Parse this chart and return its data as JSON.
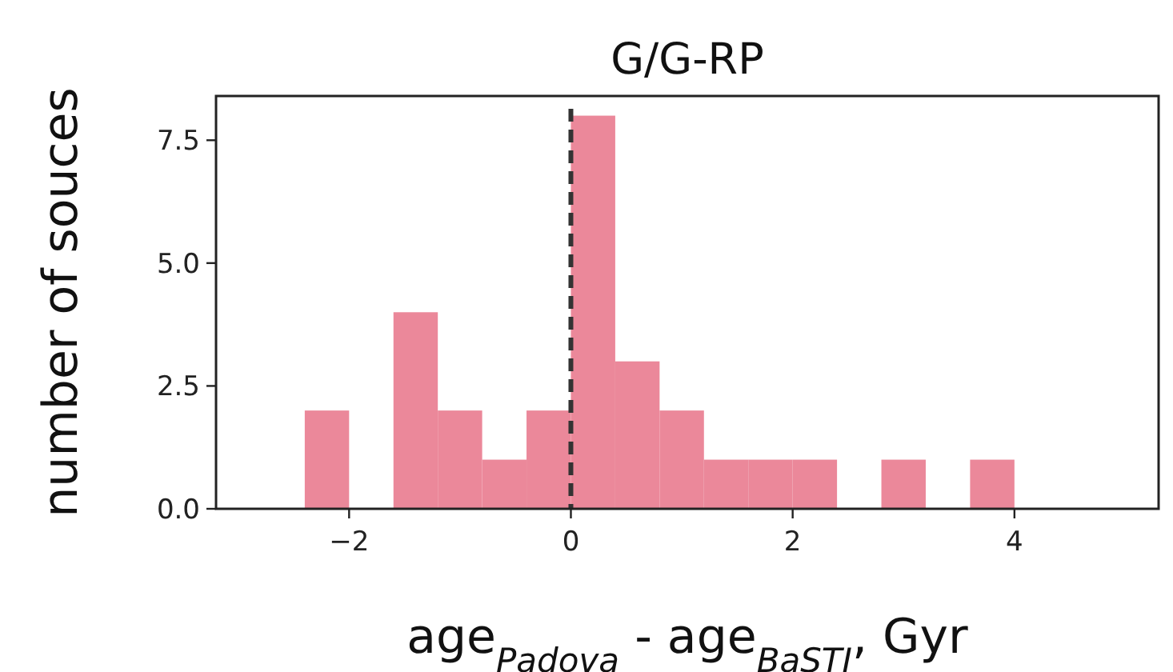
{
  "chart_data": {
    "type": "histogram",
    "title": "G/G-RP",
    "xlabel": "age$_{Padova}$ - age$_{BaSTI}$, Gyr",
    "ylabel": "number of souces",
    "bins": [
      -2.4,
      -2.0,
      -1.6,
      -1.2,
      -0.8,
      -0.4,
      0,
      0.4,
      0.8,
      1.2,
      1.6,
      2.0,
      2.4,
      2.8,
      3.2,
      3.6,
      4.0
    ],
    "values": [
      2,
      0,
      4,
      2,
      1,
      2,
      8,
      3,
      2,
      1,
      1,
      1,
      0,
      1,
      0,
      1
    ],
    "color": "#eb889a",
    "xlim": [
      -3.2,
      5.3
    ],
    "xticks": [
      {
        "value": -2,
        "label": "−2"
      },
      0,
      2,
      4
    ],
    "ylim": [
      0,
      8.4
    ],
    "yticks": [
      {
        "value": 0,
        "label": "0.0"
      },
      {
        "value": 2.5,
        "label": "2.5"
      },
      {
        "value": 5,
        "label": "5.0"
      },
      {
        "value": 7.5,
        "label": "7.5"
      }
    ],
    "ref_lines": [
      {
        "axis": "x",
        "value": 0,
        "label": null,
        "color": "#333333",
        "line_style": "dashed"
      }
    ],
    "grid": false
  }
}
